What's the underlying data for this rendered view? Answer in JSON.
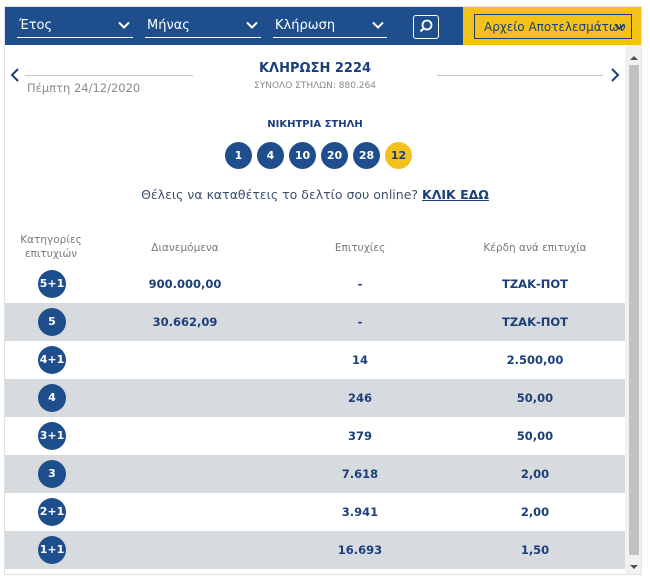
{
  "filters": {
    "year_label": "Έτος",
    "month_label": "Μήνας",
    "draw_label": "Κλήρωση",
    "archive_label": "Αρχείο Αποτελεσμάτων"
  },
  "draw": {
    "date": "Πέμπτη 24/12/2020",
    "title": "ΚΛΗΡΩΣΗ 2224",
    "total_columns": "ΣΥΝΟΛΟ ΣΤΗΛΩΝ: 880.264"
  },
  "winning": {
    "label": "ΝΙΚΗΤΡΙΑ ΣΤΗΛΗ",
    "numbers": [
      "1",
      "4",
      "10",
      "20",
      "28"
    ],
    "bonus": "12"
  },
  "cta": {
    "text": "Θέλεις να καταθέτεις το δελτίο σου online?",
    "link": "ΚΛΙΚ ΕΔΩ"
  },
  "table": {
    "headers": {
      "category_line1": "Κατηγορίες",
      "category_line2": "επιτυχιών",
      "distributed": "Διανεμόμενα",
      "successes": "Επιτυχίες",
      "prize": "Κέρδη ανά επιτυχία"
    },
    "rows": [
      {
        "cat": "5+1",
        "distributed": "900.000,00",
        "successes": "-",
        "prize": "ΤΖΑΚ-ΠΟΤ"
      },
      {
        "cat": "5",
        "distributed": "30.662,09",
        "successes": "-",
        "prize": "ΤΖΑΚ-ΠΟΤ"
      },
      {
        "cat": "4+1",
        "distributed": "",
        "successes": "14",
        "prize": "2.500,00"
      },
      {
        "cat": "4",
        "distributed": "",
        "successes": "246",
        "prize": "50,00"
      },
      {
        "cat": "3+1",
        "distributed": "",
        "successes": "379",
        "prize": "50,00"
      },
      {
        "cat": "3",
        "distributed": "",
        "successes": "7.618",
        "prize": "2,00"
      },
      {
        "cat": "2+1",
        "distributed": "",
        "successes": "3.941",
        "prize": "2,00"
      },
      {
        "cat": "1+1",
        "distributed": "",
        "successes": "16.693",
        "prize": "1,50"
      }
    ]
  },
  "icons": {
    "dropdown": "chevron-down-icon",
    "search": "search-icon",
    "prev": "chevron-left-icon",
    "next": "chevron-right-icon"
  },
  "colors": {
    "primary": "#1e4e8c",
    "accent": "#f2c21a",
    "row_shade": "#d7dade",
    "text": "#1c3f7a"
  }
}
